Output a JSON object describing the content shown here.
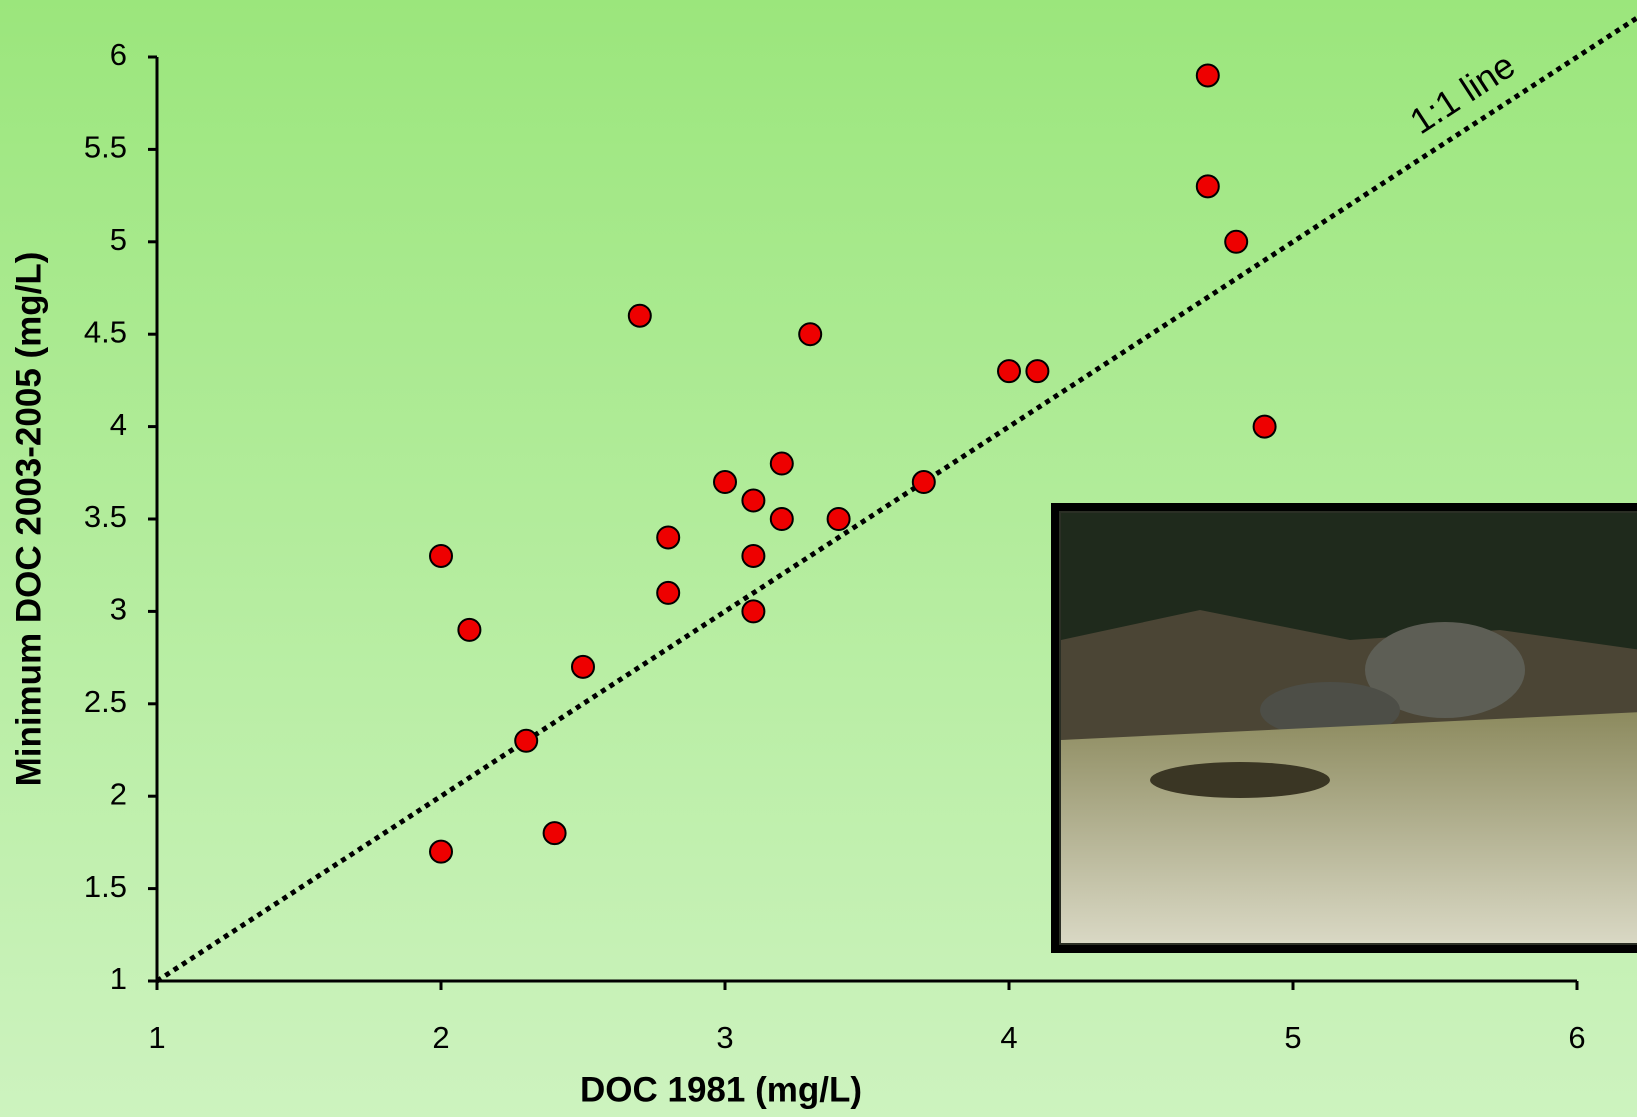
{
  "chart_data": {
    "type": "scatter",
    "xlabel": "DOC 1981 (mg/L)",
    "ylabel": "Minimum DOC 2003-2005 (mg/L)",
    "annotation": "1:1 line",
    "series": [
      {
        "color": "#ee0000",
        "x": [
          2,
          2.1,
          2,
          2.3,
          2.4,
          2.5,
          2.7,
          2.8,
          2.8,
          3,
          3.1,
          3.1,
          3.1,
          3.2,
          3.2,
          3.3,
          3.4,
          3.7,
          4,
          4.1,
          4.7,
          4.7,
          4.8,
          4.9
        ],
        "values": [
          3.3,
          2.9,
          1.7,
          2.3,
          1.8,
          2.7,
          4.6,
          3.4,
          3.1,
          3.7,
          3.6,
          3.3,
          3.0,
          3.8,
          3.5,
          4.5,
          3.5,
          3.7,
          4.3,
          4.3,
          5.9,
          5.3,
          5.0,
          4.0
        ]
      }
    ],
    "xlim": [
      1,
      6
    ],
    "xticks": [
      1,
      2,
      3,
      4,
      5,
      6
    ],
    "ylim": [
      1,
      6
    ],
    "yticks": [
      1,
      1.5,
      2,
      2.5,
      3,
      3.5,
      4,
      4.5,
      5,
      5.5,
      6
    ]
  }
}
